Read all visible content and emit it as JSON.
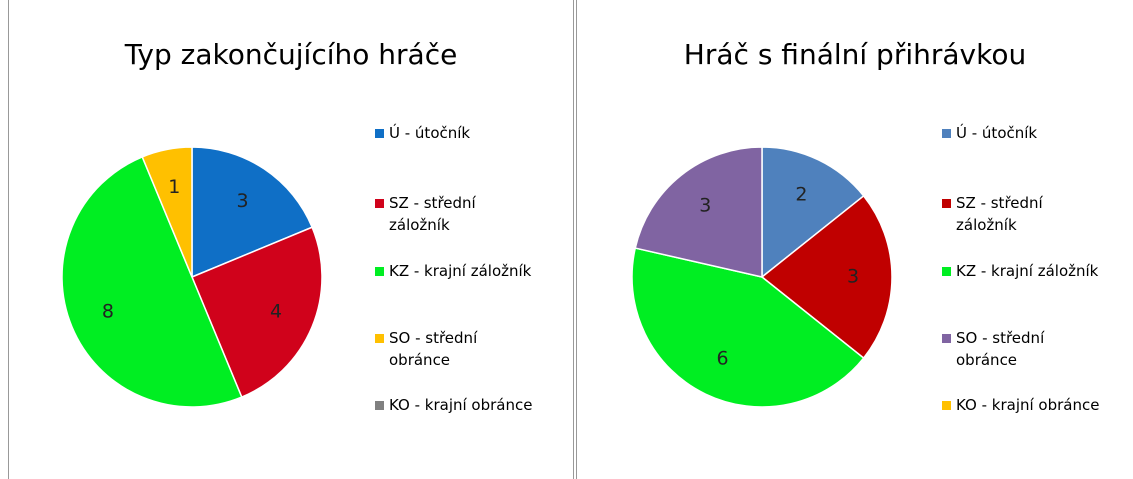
{
  "chart_data": [
    {
      "type": "pie",
      "title": "Typ zakončujícího hráče",
      "categories": [
        "Ú - útočník",
        "SZ - střední záložník",
        "KZ - krajní záložník",
        "SO - střední obránce",
        "KO - krajní obránce"
      ],
      "values": [
        3,
        4,
        8,
        1,
        0
      ],
      "colors": [
        "#0f6fc6",
        "#d0021b",
        "#00ee22",
        "#ffc000",
        "#808080"
      ]
    },
    {
      "type": "pie",
      "title": "Hráč s finální přihrávkou",
      "categories": [
        "Ú - útočník",
        "SZ - střední záložník",
        "KZ - krajní záložník",
        "SO - střední obránce",
        "KO - krajní obránce"
      ],
      "values": [
        2,
        3,
        6,
        3,
        0
      ],
      "colors": [
        "#4f81bd",
        "#c00000",
        "#00ee22",
        "#8064a2",
        "#ffc000"
      ]
    }
  ]
}
